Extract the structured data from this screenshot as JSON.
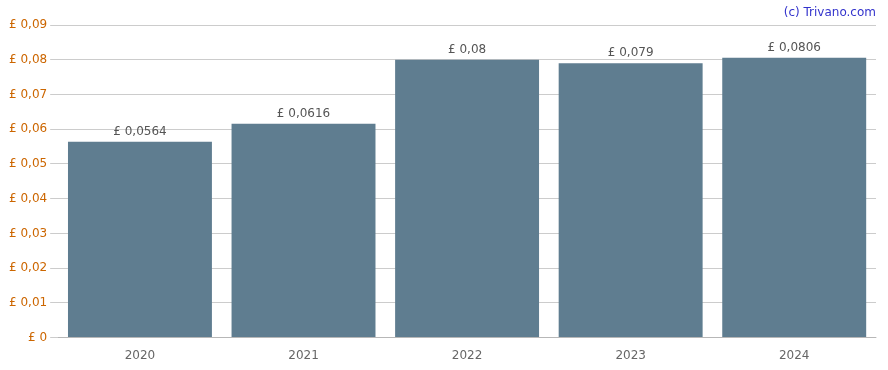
{
  "chart_data": {
    "type": "bar",
    "categories": [
      "2020",
      "2021",
      "2022",
      "2023",
      "2024"
    ],
    "values": [
      0.0564,
      0.0616,
      0.08,
      0.079,
      0.0806
    ],
    "value_labels": [
      "£ 0,0564",
      "£ 0,0616",
      "£ 0,08",
      "£ 0,079",
      "£ 0,0806"
    ],
    "data_labels": true,
    "color": "#5f7d90",
    "ylim": [
      0,
      0.09
    ],
    "yticks": [
      {
        "value": 0,
        "label": "£ 0"
      },
      {
        "value": 0.01,
        "label": "£ 0,01"
      },
      {
        "value": 0.02,
        "label": "£ 0,02"
      },
      {
        "value": 0.03,
        "label": "£ 0,03"
      },
      {
        "value": 0.04,
        "label": "£ 0,04"
      },
      {
        "value": 0.05,
        "label": "£ 0,05"
      },
      {
        "value": 0.06,
        "label": "£ 0,06"
      },
      {
        "value": 0.07,
        "label": "£ 0,07"
      },
      {
        "value": 0.08,
        "label": "£ 0,08"
      },
      {
        "value": 0.09,
        "label": "£ 0,09"
      }
    ],
    "grid": true,
    "annotations": [
      "(c) Trivano.com"
    ]
  }
}
